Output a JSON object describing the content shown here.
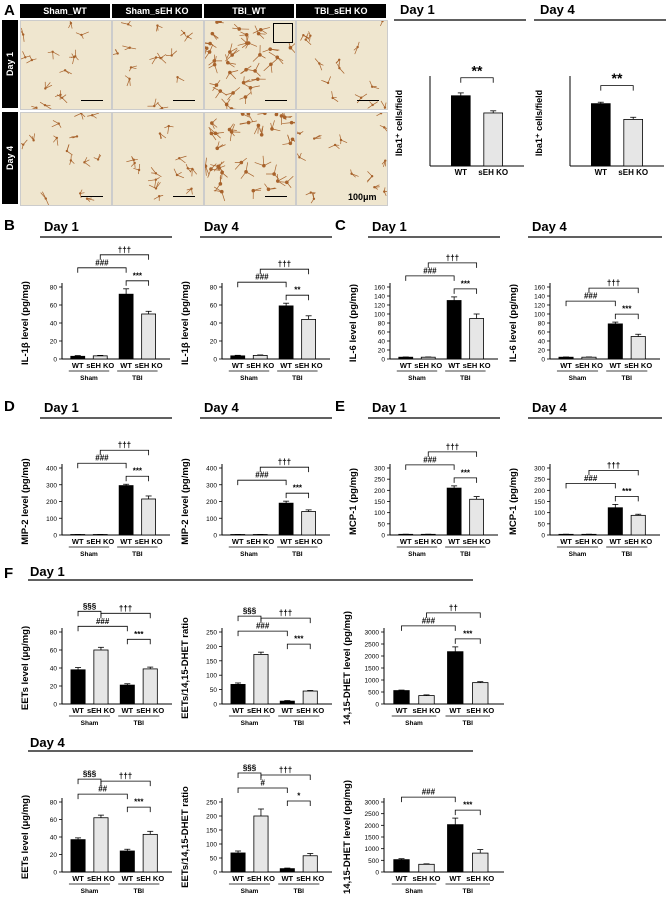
{
  "panel_labels": {
    "A": "A",
    "B": "B",
    "C": "C",
    "D": "D",
    "E": "E",
    "F": "F"
  },
  "micrograph": {
    "columns": [
      "Sham_WT",
      "Sham_sEH KO",
      "TBI_WT",
      "TBI_sEH KO"
    ],
    "rows": [
      "Day 1",
      "Day 4"
    ],
    "scale_bar": "100μm",
    "tile_color": "#efe6cf",
    "cell_color": "#a8632c"
  },
  "colors": {
    "wt": "#000000",
    "ko": "#e6e6e6"
  },
  "chart_data": [
    {
      "id": "a1",
      "type": "bar",
      "title": "Day 1",
      "ylabel": "Iba1⁺ cells/field",
      "categories": [
        "WT",
        "sEH KO"
      ],
      "values": [
        49,
        37
      ],
      "errors": [
        2,
        1.5
      ],
      "ylim": [
        0,
        60
      ],
      "show_yticks": false,
      "annotations": [
        {
          "text": "**",
          "from": 0,
          "to": 1
        }
      ]
    },
    {
      "id": "a2",
      "type": "bar",
      "title": "Day 4",
      "ylabel": "Iba1⁺ cells/field",
      "categories": [
        "WT",
        "sEH KO"
      ],
      "values": [
        43.5,
        32.5
      ],
      "errors": [
        1,
        1.5
      ],
      "ylim": [
        0,
        60
      ],
      "show_yticks": false,
      "annotations": [
        {
          "text": "**",
          "from": 0,
          "to": 1
        }
      ]
    },
    {
      "id": "b1",
      "type": "bar",
      "title": "Day 1",
      "ylabel": "IL-1β level (pg/mg)",
      "categories": [
        "WT",
        "sEH KO",
        "WT",
        "sEH KO"
      ],
      "groups": [
        "Sham",
        "TBI"
      ],
      "values": [
        3,
        3.5,
        72,
        50
      ],
      "errors": [
        0.8,
        0.5,
        6,
        3
      ],
      "ylim": [
        0,
        80
      ],
      "yticks": [
        0,
        20,
        40,
        60,
        80
      ],
      "annotations": [
        {
          "text": "###",
          "from": 0,
          "to": 2
        },
        {
          "text": "***",
          "from": 2,
          "to": 3
        },
        {
          "text": "†††",
          "from": 1,
          "to": 3
        }
      ]
    },
    {
      "id": "b2",
      "type": "bar",
      "title": "Day 4",
      "ylabel": "IL-1β level (pg/mg)",
      "categories": [
        "WT",
        "sEH KO",
        "WT",
        "sEH KO"
      ],
      "groups": [
        "Sham",
        "TBI"
      ],
      "values": [
        3.5,
        4,
        59,
        44
      ],
      "errors": [
        0.6,
        0.5,
        3,
        4
      ],
      "ylim": [
        0,
        80
      ],
      "yticks": [
        0,
        20,
        40,
        60,
        80
      ],
      "annotations": [
        {
          "text": "###",
          "from": 0,
          "to": 2
        },
        {
          "text": "**",
          "from": 2,
          "to": 3
        },
        {
          "text": "†††",
          "from": 1,
          "to": 3
        }
      ]
    },
    {
      "id": "c1",
      "type": "bar",
      "title": "Day 1",
      "ylabel": "IL-6 level (pg/mg)",
      "categories": [
        "WT",
        "sEH KO",
        "WT",
        "sEH KO"
      ],
      "groups": [
        "Sham",
        "TBI"
      ],
      "values": [
        4,
        4,
        130,
        90
      ],
      "errors": [
        0.5,
        0.5,
        8,
        10
      ],
      "ylim": [
        0,
        160
      ],
      "yticks": [
        0,
        20,
        40,
        60,
        80,
        100,
        120,
        140,
        160
      ],
      "annotations": [
        {
          "text": "###",
          "from": 0,
          "to": 2
        },
        {
          "text": "***",
          "from": 2,
          "to": 3
        },
        {
          "text": "†††",
          "from": 1,
          "to": 3
        }
      ]
    },
    {
      "id": "c2",
      "type": "bar",
      "title": "Day 4",
      "ylabel": "IL-6 level (pg/mg)",
      "categories": [
        "WT",
        "sEH KO",
        "WT",
        "sEH KO"
      ],
      "groups": [
        "Sham",
        "TBI"
      ],
      "values": [
        4,
        4,
        78,
        50
      ],
      "errors": [
        0.5,
        0.5,
        4,
        5
      ],
      "ylim": [
        0,
        160
      ],
      "yticks": [
        0,
        20,
        40,
        60,
        80,
        100,
        120,
        140,
        160
      ],
      "annotations": [
        {
          "text": "###",
          "from": 0,
          "to": 2
        },
        {
          "text": "***",
          "from": 2,
          "to": 3
        },
        {
          "text": "†††",
          "from": 1,
          "to": 3
        }
      ]
    },
    {
      "id": "d1",
      "type": "bar",
      "title": "Day 1",
      "ylabel": "MIP-2 level (pg/mg)",
      "categories": [
        "WT",
        "sEH KO",
        "WT",
        "sEH KO"
      ],
      "groups": [
        "Sham",
        "TBI"
      ],
      "values": [
        3,
        3,
        295,
        215
      ],
      "errors": [
        0.5,
        0.5,
        8,
        18
      ],
      "ylim": [
        0,
        400
      ],
      "yticks": [
        0,
        100,
        200,
        300,
        400
      ],
      "annotations": [
        {
          "text": "###",
          "from": 0,
          "to": 2
        },
        {
          "text": "***",
          "from": 2,
          "to": 3
        },
        {
          "text": "†††",
          "from": 1,
          "to": 3
        }
      ]
    },
    {
      "id": "d2",
      "type": "bar",
      "title": "Day 4",
      "ylabel": "MIP-2 level (pg/mg)",
      "categories": [
        "WT",
        "sEH KO",
        "WT",
        "sEH KO"
      ],
      "groups": [
        "Sham",
        "TBI"
      ],
      "values": [
        3,
        3,
        190,
        140
      ],
      "errors": [
        0.5,
        0.5,
        12,
        10
      ],
      "ylim": [
        0,
        400
      ],
      "yticks": [
        0,
        100,
        200,
        300,
        400
      ],
      "annotations": [
        {
          "text": "###",
          "from": 0,
          "to": 2
        },
        {
          "text": "***",
          "from": 2,
          "to": 3
        },
        {
          "text": "†††",
          "from": 1,
          "to": 3
        }
      ]
    },
    {
      "id": "e1",
      "type": "bar",
      "title": "Day 1",
      "ylabel": "MCP-1 (pg/mg)",
      "categories": [
        "WT",
        "sEH KO",
        "WT",
        "sEH KO"
      ],
      "groups": [
        "Sham",
        "TBI"
      ],
      "values": [
        3,
        3,
        210,
        160
      ],
      "errors": [
        0.5,
        0.5,
        10,
        12
      ],
      "ylim": [
        0,
        300
      ],
      "yticks": [
        0,
        50,
        100,
        150,
        200,
        250,
        300
      ],
      "annotations": [
        {
          "text": "###",
          "from": 0,
          "to": 2
        },
        {
          "text": "***",
          "from": 2,
          "to": 3
        },
        {
          "text": "†††",
          "from": 1,
          "to": 3
        }
      ]
    },
    {
      "id": "e2",
      "type": "bar",
      "title": "Day 4",
      "ylabel": "MCP-1 (pg/mg)",
      "categories": [
        "WT",
        "sEH KO",
        "WT",
        "sEH KO"
      ],
      "groups": [
        "Sham",
        "TBI"
      ],
      "values": [
        3,
        3,
        122,
        88
      ],
      "errors": [
        0.5,
        0.5,
        15,
        5
      ],
      "ylim": [
        0,
        300
      ],
      "yticks": [
        0,
        50,
        100,
        150,
        200,
        250,
        300
      ],
      "annotations": [
        {
          "text": "###",
          "from": 0,
          "to": 2
        },
        {
          "text": "***",
          "from": 2,
          "to": 3
        },
        {
          "text": "†††",
          "from": 1,
          "to": 3
        }
      ]
    },
    {
      "id": "f1",
      "type": "bar",
      "ylabel": "EETs level (μg/mg)",
      "categories": [
        "WT",
        "sEH KO",
        "WT",
        "sEH KO"
      ],
      "groups": [
        "Sham",
        "TBI"
      ],
      "values": [
        38,
        60,
        21,
        39
      ],
      "errors": [
        2.5,
        3,
        1.5,
        2
      ],
      "ylim": [
        0,
        80
      ],
      "yticks": [
        0,
        20,
        40,
        60,
        80
      ],
      "annotations": [
        {
          "text": "§§§",
          "from": 0,
          "to": 1
        },
        {
          "text": "###",
          "from": 0,
          "to": 2
        },
        {
          "text": "***",
          "from": 2,
          "to": 3
        },
        {
          "text": "†††",
          "from": 1,
          "to": 3
        }
      ]
    },
    {
      "id": "f2",
      "type": "bar",
      "ylabel": "EETs/14,15-DHET ratio",
      "categories": [
        "WT",
        "sEH KO",
        "WT",
        "sEH KO"
      ],
      "groups": [
        "Sham",
        "TBI"
      ],
      "values": [
        68,
        172,
        10,
        45
      ],
      "errors": [
        5,
        8,
        2,
        2
      ],
      "ylim": [
        0,
        250
      ],
      "yticks": [
        0,
        50,
        100,
        150,
        200,
        250
      ],
      "annotations": [
        {
          "text": "§§§",
          "from": 0,
          "to": 1
        },
        {
          "text": "###",
          "from": 0,
          "to": 2
        },
        {
          "text": "***",
          "from": 2,
          "to": 3
        },
        {
          "text": "†††",
          "from": 1,
          "to": 3
        }
      ]
    },
    {
      "id": "f3",
      "type": "bar",
      "ylabel": "14,15-DHET level (pg/mg)",
      "categories": [
        "WT",
        "sEH KO",
        "WT",
        "sEH KO"
      ],
      "groups": [
        "Sham",
        "TBI"
      ],
      "values": [
        560,
        350,
        2180,
        890
      ],
      "errors": [
        20,
        30,
        200,
        40
      ],
      "ylim": [
        0,
        3000
      ],
      "yticks": [
        0,
        500,
        1000,
        1500,
        2000,
        2500,
        3000
      ],
      "annotations": [
        {
          "text": "###",
          "from": 0,
          "to": 2
        },
        {
          "text": "***",
          "from": 2,
          "to": 3
        },
        {
          "text": "††",
          "from": 1,
          "to": 3
        }
      ]
    },
    {
      "id": "f4",
      "type": "bar",
      "ylabel": "EETs level (μg/mg)",
      "categories": [
        "WT",
        "sEH KO",
        "WT",
        "sEH KO"
      ],
      "groups": [
        "Sham",
        "TBI"
      ],
      "values": [
        37,
        62,
        24,
        43
      ],
      "errors": [
        2,
        3,
        2,
        3.5
      ],
      "ylim": [
        0,
        80
      ],
      "yticks": [
        0,
        20,
        40,
        60,
        80
      ],
      "annotations": [
        {
          "text": "§§§",
          "from": 0,
          "to": 1
        },
        {
          "text": "##",
          "from": 0,
          "to": 2
        },
        {
          "text": "***",
          "from": 2,
          "to": 3
        },
        {
          "text": "†††",
          "from": 1,
          "to": 3
        }
      ]
    },
    {
      "id": "f5",
      "type": "bar",
      "ylabel": "EETs/14,15-DHET ratio",
      "categories": [
        "WT",
        "sEH KO",
        "WT",
        "sEH KO"
      ],
      "groups": [
        "Sham",
        "TBI"
      ],
      "values": [
        68,
        200,
        12,
        58
      ],
      "errors": [
        7,
        25,
        2,
        8
      ],
      "ylim": [
        0,
        250
      ],
      "yticks": [
        0,
        50,
        100,
        150,
        200,
        250
      ],
      "annotations": [
        {
          "text": "§§§",
          "from": 0,
          "to": 1
        },
        {
          "text": "#",
          "from": 0,
          "to": 2
        },
        {
          "text": "*",
          "from": 2,
          "to": 3
        },
        {
          "text": "†††",
          "from": 1,
          "to": 3
        }
      ]
    },
    {
      "id": "f6",
      "type": "bar",
      "ylabel": "14,15-DHET level (pg/mg)",
      "categories": [
        "WT",
        "sEH KO",
        "WT",
        "sEH KO"
      ],
      "groups": [
        "Sham",
        "TBI"
      ],
      "values": [
        530,
        330,
        2030,
        810
      ],
      "errors": [
        40,
        20,
        280,
        150
      ],
      "ylim": [
        0,
        3000
      ],
      "yticks": [
        0,
        500,
        1000,
        1500,
        2000,
        2500,
        3000
      ],
      "annotations": [
        {
          "text": "###",
          "from": 0,
          "to": 2
        },
        {
          "text": "***",
          "from": 2,
          "to": 3
        }
      ]
    }
  ],
  "section_titles": [
    {
      "id": "t_a1",
      "text": "Day 1"
    },
    {
      "id": "t_a2",
      "text": "Day 4"
    },
    {
      "id": "t_f1",
      "text": "Day 1"
    },
    {
      "id": "t_f4",
      "text": "Day 4"
    }
  ]
}
